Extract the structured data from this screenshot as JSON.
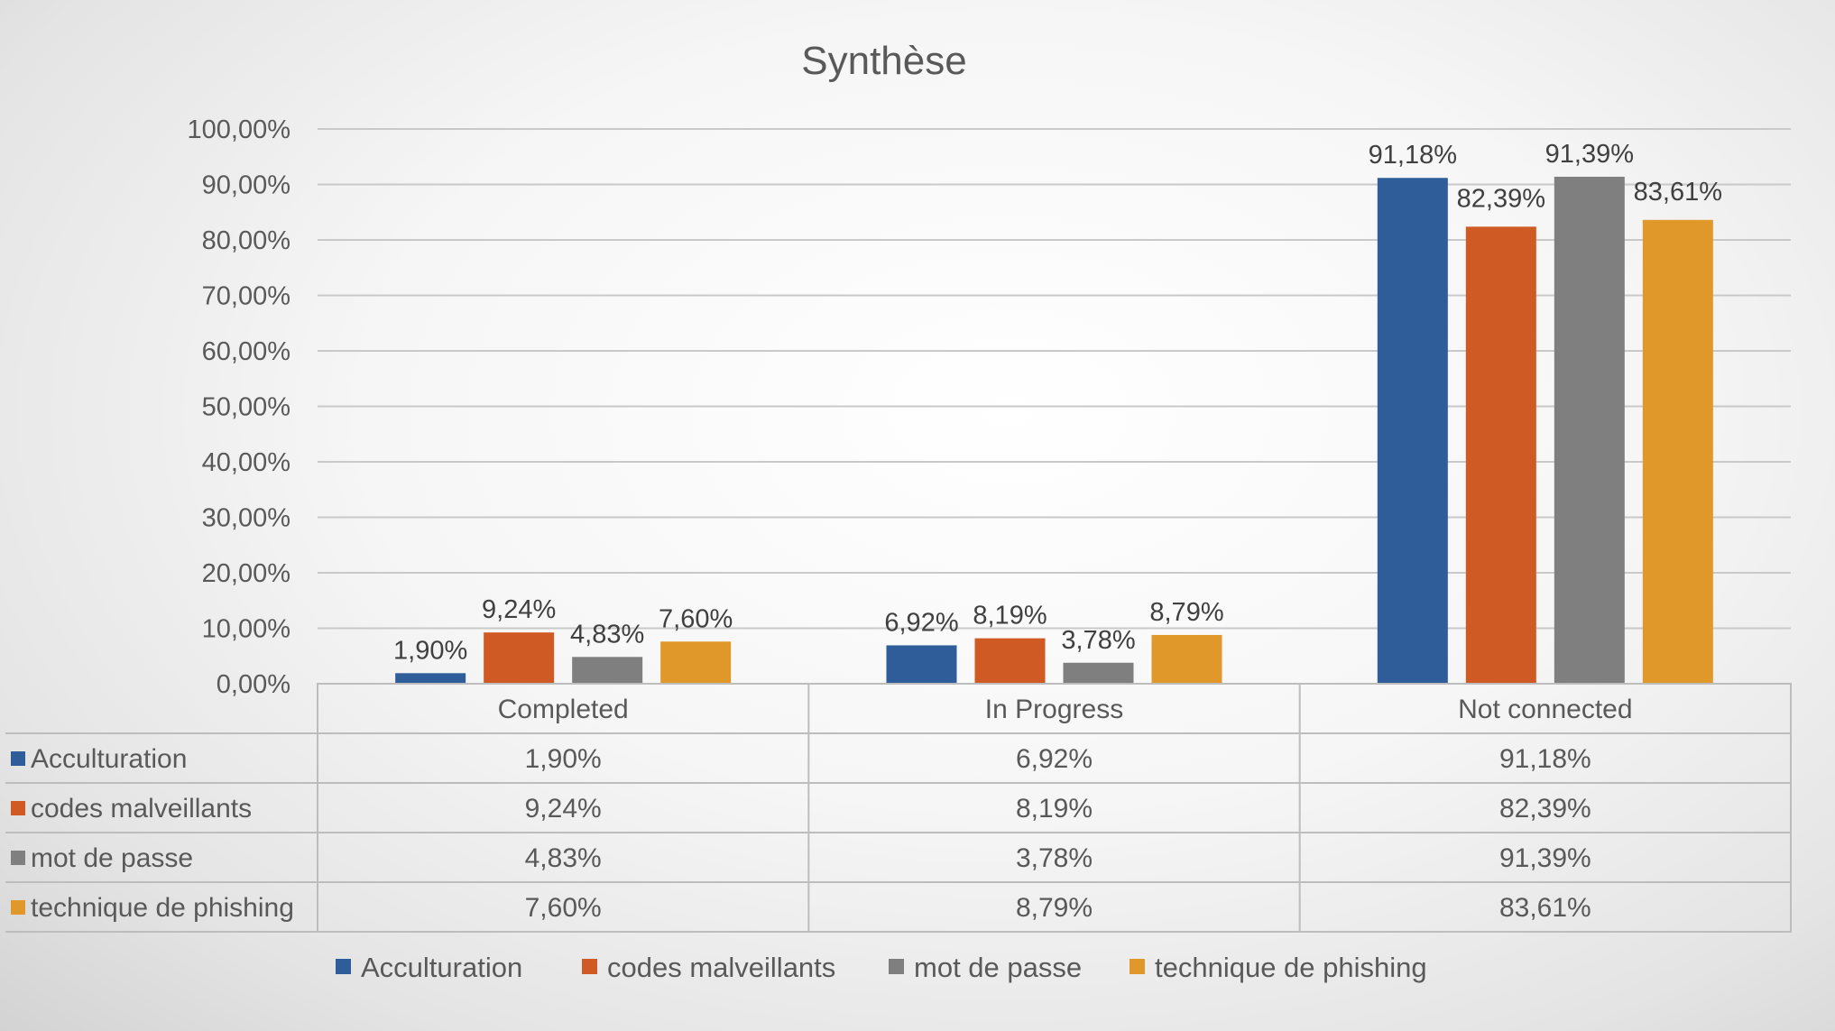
{
  "chart_data": {
    "type": "bar",
    "title": "Synthèse",
    "categories": [
      "Completed",
      "In Progress",
      "Not connected"
    ],
    "ylim": [
      0,
      100
    ],
    "yticks": [
      "0,00%",
      "10,00%",
      "20,00%",
      "30,00%",
      "40,00%",
      "50,00%",
      "60,00%",
      "70,00%",
      "80,00%",
      "90,00%",
      "100,00%"
    ],
    "grid": true,
    "legend_position": "bottom",
    "data_table": true,
    "series": [
      {
        "name": "Acculturation",
        "color": "#2e5d99",
        "values": [
          1.9,
          6.92,
          91.18
        ],
        "labels": [
          "1,90%",
          "6,92%",
          "91,18%"
        ]
      },
      {
        "name": "codes malveillants",
        "color": "#cf5a23",
        "values": [
          9.24,
          8.19,
          82.39
        ],
        "labels": [
          "9,24%",
          "8,19%",
          "82,39%"
        ]
      },
      {
        "name": "mot de passe",
        "color": "#7f7f7f",
        "values": [
          4.83,
          3.78,
          91.39
        ],
        "labels": [
          "4,83%",
          "3,78%",
          "91,39%"
        ]
      },
      {
        "name": "technique de phishing",
        "color": "#e0982a",
        "values": [
          7.6,
          8.79,
          83.61
        ],
        "labels": [
          "7,60%",
          "8,79%",
          "83,61%"
        ]
      }
    ]
  }
}
